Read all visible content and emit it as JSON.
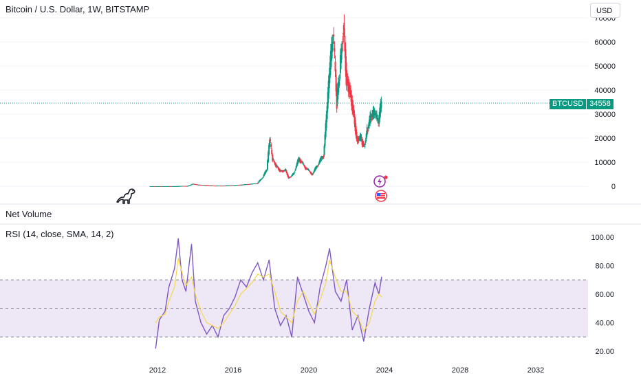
{
  "header": {
    "title": "Bitcoin / U.S. Dollar, 1W, BITSTAMP",
    "currency_button": "USD"
  },
  "price_tag": {
    "symbol": "BTCUSD",
    "value": "34558"
  },
  "panes": {
    "volume_label": "Net Volume",
    "rsi_label": "RSI (14, close, SMA, 14, 2)"
  },
  "colors": {
    "up": "#089981",
    "down": "#f23645",
    "rsi_line": "#7e57c2",
    "rsi_ma": "#f7d84a",
    "rsi_band": "#ede7f6",
    "last_price_line": "#089981"
  },
  "icons": [
    "dinosaur-icon",
    "lightning-event-icon",
    "flag-event-icon"
  ],
  "chart_data": [
    {
      "type": "candlestick",
      "title": "Bitcoin / U.S. Dollar, 1W, BITSTAMP",
      "x_label": "",
      "y_ticks": [
        0,
        10000,
        20000,
        30000,
        40000,
        50000,
        60000,
        70000
      ],
      "y_tick_labels": [
        "0",
        "10000",
        "20000",
        "30000",
        "40000",
        "50000",
        "60000",
        "70000"
      ],
      "ylim": [
        0,
        70000
      ],
      "last_price": 34558,
      "x": [
        2011.6,
        2012.0,
        2012.5,
        2013.0,
        2013.3,
        2013.6,
        2013.9,
        2014.2,
        2014.6,
        2015.0,
        2015.5,
        2016.0,
        2016.5,
        2017.0,
        2017.3,
        2017.6,
        2017.8,
        2017.95,
        2018.1,
        2018.3,
        2018.5,
        2018.8,
        2018.95,
        2019.2,
        2019.5,
        2019.8,
        2020.2,
        2020.5,
        2020.8,
        2020.95,
        2021.1,
        2021.3,
        2021.5,
        2021.65,
        2021.85,
        2022.0,
        2022.2,
        2022.4,
        2022.55,
        2022.8,
        2022.95,
        2023.1,
        2023.3,
        2023.5,
        2023.7,
        2023.85
      ],
      "values": [
        5,
        6,
        10,
        20,
        150,
        110,
        1000,
        600,
        500,
        250,
        260,
        430,
        650,
        1000,
        1200,
        4000,
        7000,
        19500,
        11000,
        8500,
        6500,
        6500,
        3500,
        5000,
        11500,
        8000,
        5000,
        9000,
        13000,
        28000,
        45000,
        63000,
        35000,
        47000,
        68000,
        46000,
        40000,
        30000,
        20000,
        19500,
        16500,
        23000,
        28500,
        30000,
        26000,
        34558
      ]
    },
    {
      "type": "line",
      "title": "RSI (14, close, SMA, 14, 2)",
      "y_ticks": [
        20,
        40,
        60,
        80,
        100
      ],
      "y_tick_labels": [
        "20.00",
        "40.00",
        "60.00",
        "80.00",
        "100.00"
      ],
      "ylim": [
        20,
        100
      ],
      "bands": {
        "upper": 70,
        "middle": 50,
        "lower": 30
      },
      "x_ticks": [
        2012,
        2016,
        2020,
        2024,
        2028,
        2032
      ],
      "x_tick_labels": [
        "2012",
        "2016",
        "2020",
        "2024",
        "2028",
        "2032"
      ],
      "x": [
        2011.9,
        2012.1,
        2012.4,
        2012.6,
        2012.9,
        2013.1,
        2013.3,
        2013.5,
        2013.8,
        2014.0,
        2014.3,
        2014.6,
        2014.9,
        2015.2,
        2015.5,
        2015.8,
        2016.1,
        2016.4,
        2016.7,
        2017.0,
        2017.3,
        2017.6,
        2017.9,
        2018.2,
        2018.5,
        2018.8,
        2019.1,
        2019.4,
        2019.7,
        2020.0,
        2020.3,
        2020.6,
        2020.9,
        2021.1,
        2021.4,
        2021.7,
        2022.0,
        2022.3,
        2022.6,
        2022.9,
        2023.2,
        2023.5,
        2023.7,
        2023.85
      ],
      "series": [
        {
          "values": [
            22,
            42,
            48,
            65,
            78,
            99,
            70,
            62,
            95,
            55,
            40,
            32,
            38,
            30,
            45,
            50,
            58,
            70,
            65,
            75,
            82,
            70,
            84,
            50,
            38,
            45,
            30,
            72,
            60,
            48,
            40,
            65,
            80,
            92,
            62,
            55,
            70,
            35,
            45,
            27,
            50,
            68,
            60,
            72
          ]
        },
        {
          "values": [
            40,
            44,
            46,
            55,
            65,
            85,
            75,
            66,
            72,
            60,
            48,
            40,
            38,
            36,
            40,
            46,
            52,
            60,
            64,
            68,
            74,
            72,
            74,
            62,
            48,
            44,
            40,
            55,
            62,
            54,
            46,
            56,
            68,
            84,
            72,
            62,
            62,
            48,
            44,
            34,
            40,
            55,
            60,
            58
          ]
        }
      ]
    }
  ]
}
